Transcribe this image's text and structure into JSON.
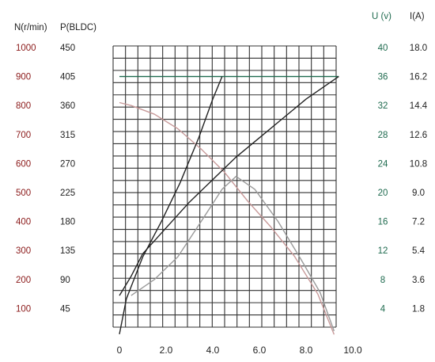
{
  "chart_data": {
    "type": "line",
    "title": "",
    "grid": true,
    "axes": {
      "x": {
        "ticks": [
          "0",
          "2.0",
          "4.0",
          "6.0",
          "8.0",
          "10.0"
        ],
        "range": [
          0,
          10
        ]
      },
      "N": {
        "label": "N(r/min)",
        "ticks": [
          "1000",
          "900",
          "800",
          "700",
          "600",
          "500",
          "400",
          "300",
          "200",
          "100"
        ],
        "color": "#8b1a1a"
      },
      "P": {
        "label": "P(BLDC)",
        "ticks": [
          "450",
          "405",
          "360",
          "315",
          "270",
          "225",
          "180",
          "135",
          "90",
          "45"
        ],
        "color": "#222222"
      },
      "U": {
        "label": "U (v)",
        "ticks": [
          "40",
          "36",
          "32",
          "28",
          "24",
          "20",
          "16",
          "12",
          "8",
          "4"
        ],
        "color": "#1f6b4f"
      },
      "I": {
        "label": "I(A)",
        "ticks": [
          "18.0",
          "16.2",
          "14.4",
          "12.6",
          "10.8",
          "9.0",
          "7.2",
          "5.4",
          "3.6",
          "1.8"
        ],
        "color": "#222222"
      }
    },
    "series": [
      {
        "scale_units": "N(r/min)",
        "color": "#c89a9a",
        "points": [
          [
            0,
            810
          ],
          [
            0.5,
            800
          ],
          [
            1.5,
            770
          ],
          [
            2.5,
            720
          ],
          [
            3.5,
            650
          ],
          [
            4.5,
            570
          ],
          [
            5.5,
            470
          ],
          [
            6.5,
            380
          ],
          [
            7.5,
            280
          ],
          [
            8.5,
            150
          ],
          [
            9.2,
            10
          ]
        ]
      },
      {
        "scale_units": "U (v)",
        "color": "#1f6b4f",
        "points": [
          [
            0,
            36
          ],
          [
            4.3,
            36
          ],
          [
            9.4,
            36
          ]
        ]
      },
      {
        "scale_units": "P(BLDC)",
        "color": "#9a9a9a",
        "points": [
          [
            0.5,
            65
          ],
          [
            1.5,
            90
          ],
          [
            2.5,
            125
          ],
          [
            3.5,
            180
          ],
          [
            4.4,
            230
          ],
          [
            5.0,
            250
          ],
          [
            5.8,
            230
          ],
          [
            6.8,
            180
          ],
          [
            7.8,
            120
          ],
          [
            8.6,
            70
          ],
          [
            9.2,
            10
          ]
        ]
      },
      {
        "scale_units": "I(A)",
        "color": "#222222",
        "points": [
          [
            0,
            2.6
          ],
          [
            0.5,
            3.8
          ],
          [
            1.0,
            5.2
          ],
          [
            2.0,
            6.8
          ],
          [
            3.0,
            8.4
          ],
          [
            4.0,
            9.8
          ],
          [
            5.0,
            11.2
          ],
          [
            6.0,
            12.4
          ],
          [
            7.0,
            13.6
          ],
          [
            8.0,
            14.8
          ],
          [
            9.0,
            15.8
          ],
          [
            9.4,
            16.2
          ]
        ]
      },
      {
        "scale_units": "I(A)",
        "color": "#222222",
        "points": [
          [
            0,
            0.2
          ],
          [
            0.3,
            2.4
          ],
          [
            1.0,
            5.0
          ],
          [
            1.8,
            7.2
          ],
          [
            2.6,
            9.6
          ],
          [
            3.4,
            12.4
          ],
          [
            4.0,
            14.8
          ],
          [
            4.4,
            16.2
          ]
        ]
      }
    ]
  }
}
